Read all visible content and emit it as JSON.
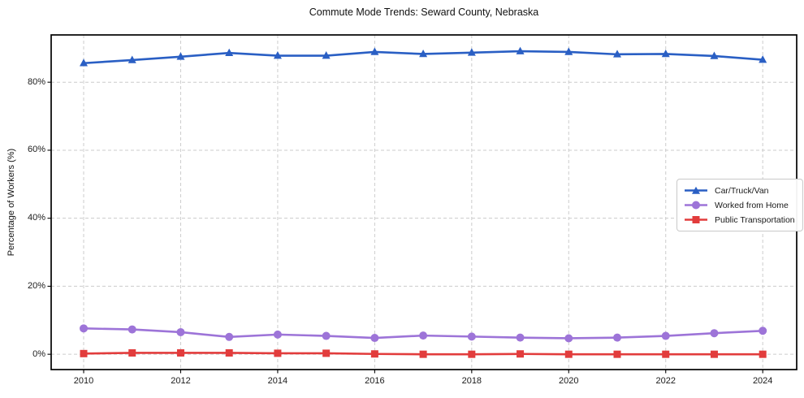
{
  "chart_data": {
    "type": "line",
    "title": "Commute Mode Trends: Seward County, Nebraska",
    "xlabel": "",
    "ylabel": "Percentage of Workers (%)",
    "x": [
      2010,
      2011,
      2012,
      2013,
      2014,
      2015,
      2016,
      2017,
      2018,
      2019,
      2020,
      2021,
      2022,
      2023,
      2024
    ],
    "xticks": [
      2010,
      2012,
      2014,
      2016,
      2018,
      2020,
      2022,
      2024
    ],
    "xtick_labels": [
      "2010",
      "2012",
      "2014",
      "2016",
      "2018",
      "2020",
      "2022",
      "2024"
    ],
    "yticks": [
      0,
      20,
      40,
      60,
      80
    ],
    "ytick_labels": [
      "0%",
      "20%",
      "40%",
      "60%",
      "80%"
    ],
    "xlim": [
      2009.33,
      2024.7
    ],
    "ylim": [
      -4.5,
      93.9
    ],
    "grid": true,
    "grid_style": "dashed",
    "grid_color": "#cccccc",
    "axes_edge_color": "#000000",
    "background_color": "#ffffff",
    "legend_position": "right-center-inside",
    "series": [
      {
        "name": "Car/Truck/Van",
        "color": "#2a5fc4",
        "marker": "triangle-marker",
        "values": [
          85.6,
          86.5,
          87.5,
          88.6,
          87.8,
          87.8,
          88.9,
          88.3,
          88.7,
          89.1,
          88.9,
          88.2,
          88.3,
          87.7,
          86.6
        ]
      },
      {
        "name": "Worked from Home",
        "color": "#9d74d8",
        "marker": "circle-marker",
        "values": [
          7.6,
          7.3,
          6.5,
          5.1,
          5.8,
          5.4,
          4.8,
          5.5,
          5.2,
          4.9,
          4.7,
          4.9,
          5.4,
          6.2,
          6.9
        ]
      },
      {
        "name": "Public Transportation",
        "color": "#e23c3c",
        "marker": "square-marker",
        "values": [
          0.2,
          0.4,
          0.4,
          0.4,
          0.3,
          0.3,
          0.1,
          0.0,
          0.0,
          0.1,
          0.0,
          0.0,
          0.0,
          0.0,
          0.0
        ]
      }
    ]
  }
}
